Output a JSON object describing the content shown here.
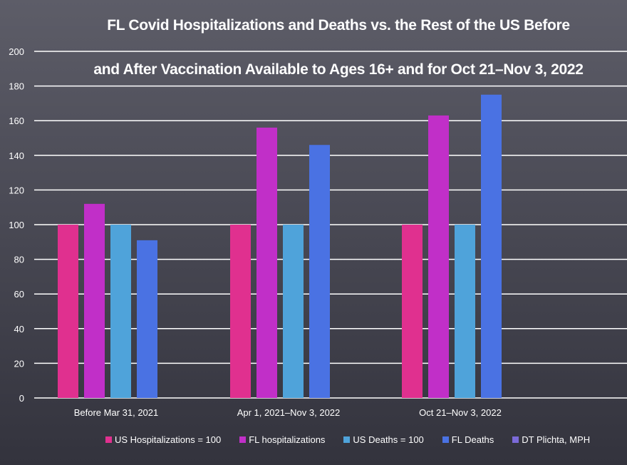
{
  "chart_data": {
    "type": "bar",
    "title": "FL Covid Hospitalizations and Deaths vs. the Rest of the US Before and After Vaccination Available to Ages 16+ and for Oct 21–Nov 3, 2022",
    "title_lines": [
      "FL Covid Hospitalizations and Deaths vs. the Rest of the US Before",
      "and After Vaccination Available to Ages 16+ and for Oct 21–Nov 3, 2022"
    ],
    "xlabel": "",
    "ylabel": "",
    "ylim": [
      0,
      200
    ],
    "yticks": [
      0,
      20,
      40,
      60,
      80,
      100,
      120,
      140,
      160,
      180,
      200
    ],
    "grid": true,
    "legend_position": "bottom",
    "categories": [
      "Before Mar 31, 2021",
      "Apr 1, 2021–Nov 3, 2022",
      "Oct 21–Nov 3, 2022"
    ],
    "series": [
      {
        "name": "US Hospitalizations = 100",
        "color": "#e0308f",
        "values": [
          100,
          100,
          100
        ]
      },
      {
        "name": "FL hospitalizations",
        "color": "#c12fc8",
        "values": [
          112,
          156,
          163
        ]
      },
      {
        "name": "US Deaths = 100",
        "color": "#4fa3da",
        "values": [
          100,
          100,
          100
        ]
      },
      {
        "name": "FL Deaths",
        "color": "#4a72e3",
        "values": [
          91,
          146,
          175
        ]
      },
      {
        "name": "DT Plichta, MPH",
        "color": "#7b6ad8",
        "values": [
          null,
          null,
          null
        ]
      }
    ]
  }
}
